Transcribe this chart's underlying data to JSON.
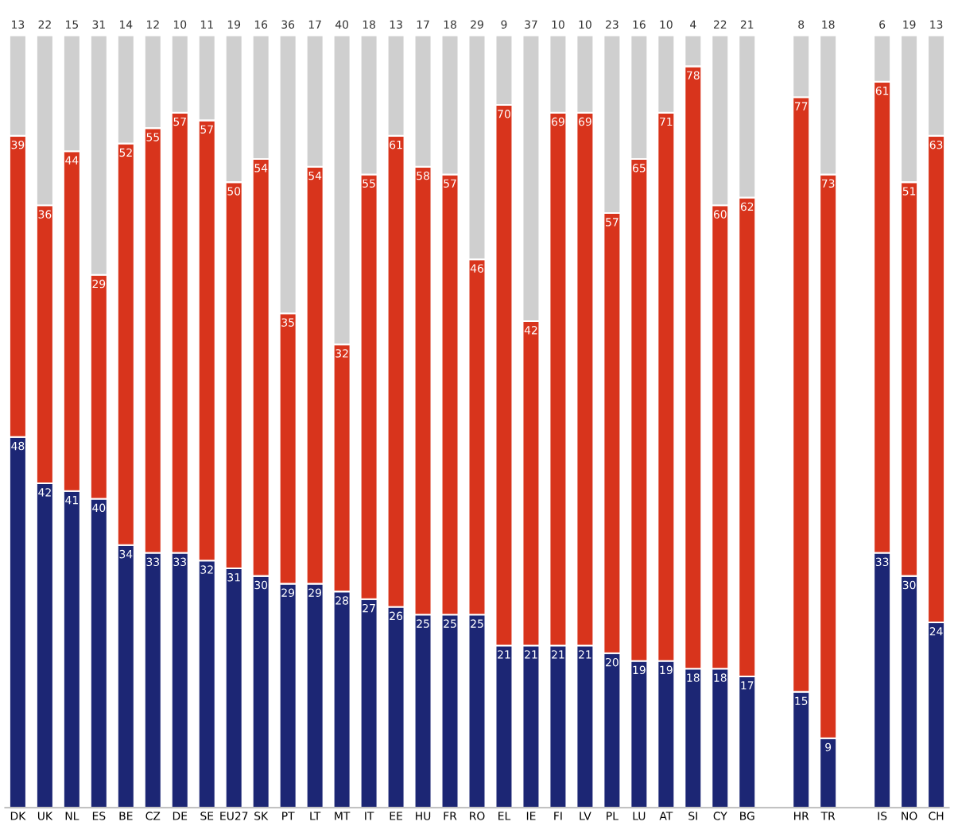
{
  "chart_data": {
    "type": "bar",
    "stacked": true,
    "data_labels": true,
    "tick_labels": "x",
    "grid": false,
    "legend": false,
    "categories": [
      "DK",
      "UK",
      "NL",
      "ES",
      "BE",
      "CZ",
      "DE",
      "SE",
      "EU27",
      "SK",
      "PT",
      "LT",
      "MT",
      "IT",
      "EE",
      "HU",
      "FR",
      "RO",
      "EL",
      "IE",
      "FI",
      "LV",
      "PL",
      "LU",
      "AT",
      "SI",
      "CY",
      "BG",
      null,
      "HR",
      "TR",
      null,
      "IS",
      "NO",
      "CH"
    ],
    "series": [
      {
        "color": "#1c2674",
        "values": [
          48,
          42,
          41,
          40,
          34,
          33,
          33,
          32,
          31,
          30,
          29,
          29,
          28,
          27,
          26,
          25,
          25,
          25,
          21,
          21,
          21,
          21,
          20,
          19,
          19,
          18,
          18,
          17,
          null,
          15,
          9,
          null,
          33,
          30,
          24
        ]
      },
      {
        "color": "#d8341c",
        "values": [
          39,
          36,
          44,
          29,
          52,
          55,
          57,
          57,
          50,
          54,
          35,
          54,
          32,
          55,
          61,
          58,
          57,
          46,
          70,
          42,
          69,
          69,
          57,
          65,
          71,
          78,
          60,
          62,
          null,
          77,
          73,
          null,
          61,
          51,
          63
        ]
      },
      {
        "color": "#cfcfcf",
        "values": [
          13,
          22,
          15,
          31,
          14,
          12,
          10,
          11,
          19,
          16,
          36,
          17,
          40,
          18,
          13,
          17,
          18,
          29,
          9,
          37,
          10,
          10,
          23,
          16,
          10,
          4,
          22,
          21,
          null,
          8,
          18,
          null,
          6,
          19,
          13
        ]
      }
    ]
  }
}
